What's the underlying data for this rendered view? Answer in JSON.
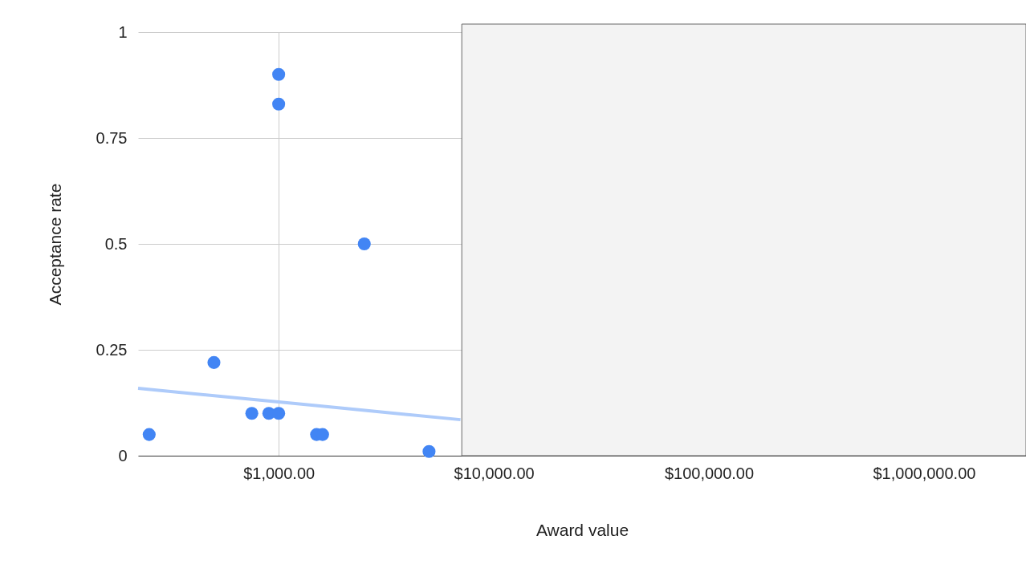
{
  "chart_data": {
    "type": "scatter",
    "xlabel": "Award value",
    "ylabel": "Acceptance rate",
    "log": "x",
    "grid": true,
    "marker": "circle",
    "xlim": [
      222,
      2980000
    ],
    "ylim": [
      0,
      1
    ],
    "bands": [
      {
        "axis": "x",
        "from": 7100,
        "to": 2980000,
        "color": "#f3f3f3"
      }
    ],
    "xticks": [
      {
        "value": 1000,
        "label": "$1,000.00"
      },
      {
        "value": 10000,
        "label": "$10,000.00"
      },
      {
        "value": 100000,
        "label": "$100,000.00"
      },
      {
        "value": 1000000,
        "label": "$1,000,000.00"
      }
    ],
    "yticks": [
      0,
      0.25,
      0.5,
      0.75,
      1
    ],
    "series": [
      {
        "color": "#4285f4",
        "x": [
          250,
          500,
          750,
          900,
          1000,
          1000,
          1000,
          1500,
          1600,
          2500,
          5000
        ],
        "values": [
          0.05,
          0.22,
          0.1,
          0.1,
          0.1,
          0.9,
          0.83,
          0.05,
          0.05,
          0.5,
          0.01
        ]
      },
      {
        "type": "line",
        "marker": "none",
        "color": "#aecbfa",
        "x": [
          222,
          1000,
          7000
        ],
        "values": [
          0.159,
          0.127,
          0.085
        ]
      }
    ]
  }
}
